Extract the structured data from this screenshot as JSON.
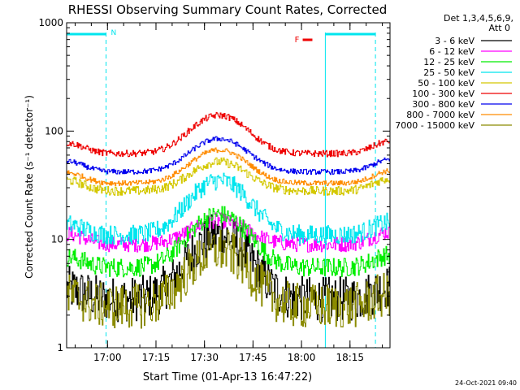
{
  "chart_data": {
    "type": "line",
    "title": "RHESSI Observing Summary Count Rates, Corrected",
    "ylabel": "Corrected Count Rate (s⁻¹ detector⁻¹)",
    "xlabel": "Start Time (01-Apr-13 16:47:22)",
    "y_scale": "log",
    "ylim": [
      1,
      1000
    ],
    "xlim_minutes_from_start": [
      0,
      100
    ],
    "x_tick_labels": [
      "17:00",
      "17:15",
      "17:30",
      "17:45",
      "18:00",
      "18:15"
    ],
    "y_tick_labels": [
      "1",
      "10",
      "100",
      "1000"
    ],
    "legend_header": [
      "Det 1,3,4,5,6,9,",
      "Att 0"
    ],
    "legend_position": "top-right",
    "flags": {
      "N_label": "N",
      "F_label": "F"
    },
    "timestamp": "24-Oct-2021 09:40",
    "series": [
      {
        "name": "3 - 6 keV",
        "color": "#000000",
        "base": 2.8,
        "peak": 11,
        "noise": 0.35
      },
      {
        "name": "6 - 12 keV",
        "color": "#ff00ff",
        "base": 9,
        "peak": 15,
        "noise": 0.12
      },
      {
        "name": "12 - 25 keV",
        "color": "#00ee00",
        "base": 5.5,
        "peak": 17,
        "noise": 0.15
      },
      {
        "name": "25 - 50 keV",
        "color": "#00e5ee",
        "base": 11,
        "peak": 35,
        "noise": 0.15
      },
      {
        "name": "50 - 100 keV",
        "color": "#d4c800",
        "base": 28,
        "peak": 52,
        "noise": 0.07
      },
      {
        "name": "100 - 300 keV",
        "color": "#ee0000",
        "base": 62,
        "peak": 140,
        "noise": 0.05
      },
      {
        "name": "300 - 800 keV",
        "color": "#0000ee",
        "base": 42,
        "peak": 85,
        "noise": 0.04
      },
      {
        "name": "800 - 7000 keV",
        "color": "#ff8c00",
        "base": 33,
        "peak": 67,
        "noise": 0.04
      },
      {
        "name": "7000 - 15000 keV",
        "color": "#8b8b00",
        "base": 2.4,
        "peak": 8,
        "noise": 0.35
      }
    ]
  }
}
